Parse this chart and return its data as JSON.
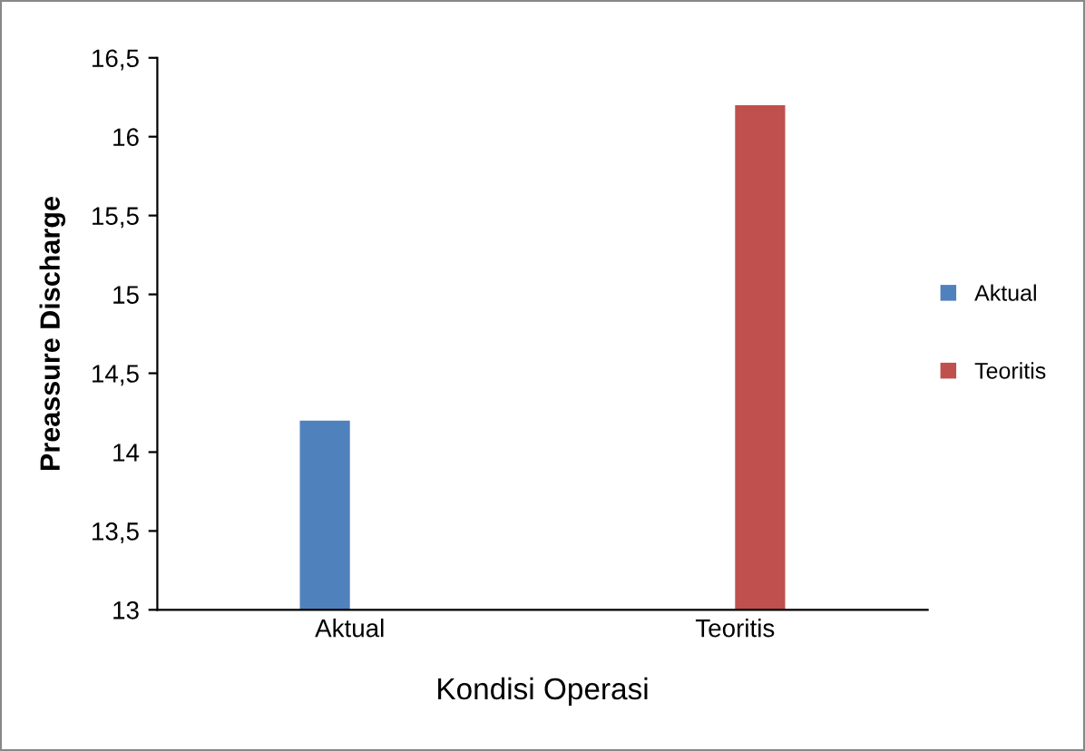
{
  "chart_data": {
    "type": "bar",
    "xlabel": "Kondisi Operasi",
    "ylabel": "Preassure Discharge",
    "categories": [
      "Aktual",
      "Teoritis"
    ],
    "series": [
      {
        "name": "Aktual",
        "color": "#4f81bd",
        "values": [
          14.2,
          null
        ]
      },
      {
        "name": "Teoritis",
        "color": "#c0504d",
        "values": [
          null,
          16.2
        ]
      }
    ],
    "ylim": [
      13,
      16.5
    ],
    "yticks": [
      13,
      {
        "value": 13.5,
        "label": "13,5"
      },
      14,
      {
        "value": 14.5,
        "label": "14,5"
      },
      15,
      {
        "value": 15.5,
        "label": "15,5"
      },
      16,
      {
        "value": 16.5,
        "label": "16,5"
      }
    ],
    "grid": false,
    "legend": "right"
  }
}
